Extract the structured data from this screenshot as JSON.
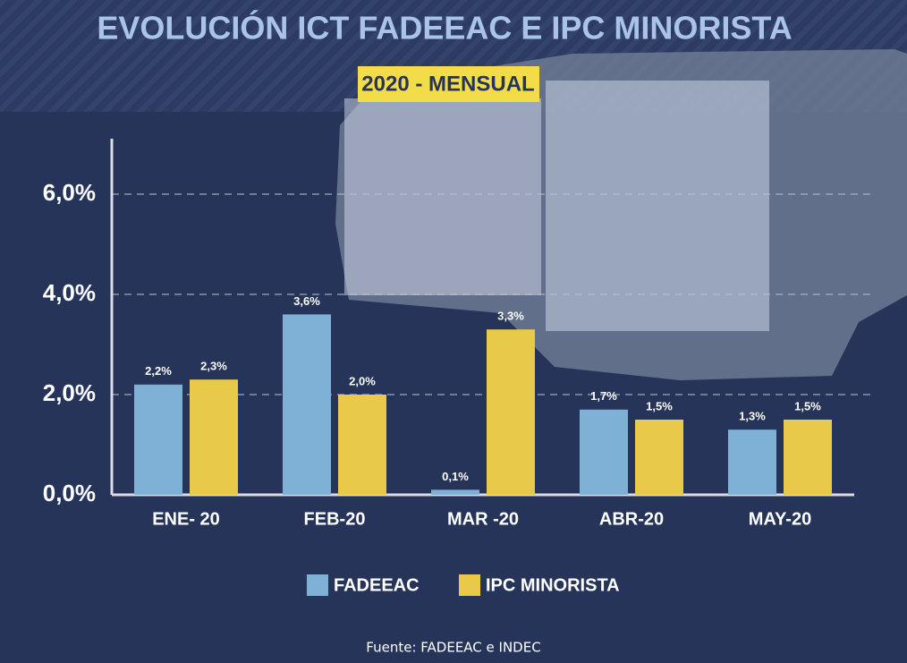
{
  "chart_data": {
    "type": "bar",
    "title": "EVOLUCIÓN ICT FADEEAC E IPC MINORISTA",
    "subtitle": "2020 - MENSUAL",
    "source": "Fuente: FADEEAC e INDEC",
    "categories": [
      "ENE- 20",
      "FEB-20",
      "MAR -20",
      "ABR-20",
      "MAY-20"
    ],
    "series": [
      {
        "name": "FADEEAC",
        "color": "#7fb0d6",
        "values": [
          2.2,
          3.6,
          0.1,
          1.7,
          1.3
        ],
        "value_labels": [
          "2,2%",
          "3,6%",
          "0,1%",
          "1,7%",
          "1,3%"
        ]
      },
      {
        "name": "IPC MINORISTA",
        "color": "#e8c94a",
        "values": [
          2.3,
          2.0,
          3.3,
          1.5,
          1.5
        ],
        "value_labels": [
          "2,3%",
          "2,0%",
          "3,3%",
          "1,5%",
          "1,5%"
        ]
      }
    ],
    "ylim": [
      0,
      7
    ],
    "yticks": [
      {
        "value": 0,
        "label": "0,0%"
      },
      {
        "value": 2,
        "label": "2,0%"
      },
      {
        "value": 4,
        "label": "4,0%"
      },
      {
        "value": 6,
        "label": "6,0%"
      }
    ],
    "grid": true,
    "legend": "bottom"
  }
}
